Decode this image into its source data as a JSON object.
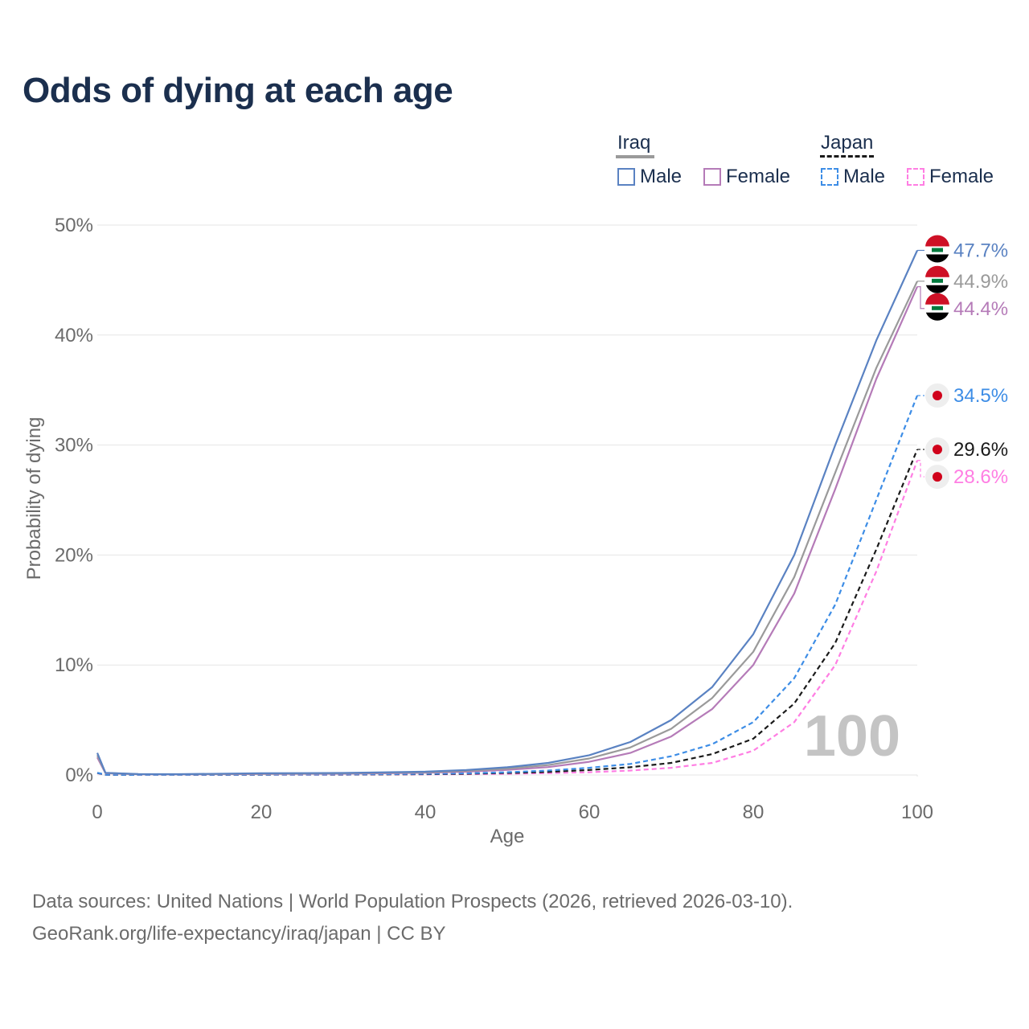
{
  "title": "Odds of dying at each age",
  "legend": {
    "groups": [
      {
        "name": "Iraq",
        "items": [
          "Male",
          "Female"
        ]
      },
      {
        "name": "Japan",
        "items": [
          "Male",
          "Female"
        ]
      }
    ]
  },
  "footer": {
    "line1": "Data sources: United Nations | World Population Prospects (2026, retrieved 2026-03-10).",
    "line2": "GeoRank.org/life-expectancy/iraq/japan | CC BY"
  },
  "colors": {
    "iraq_male": "#5a82c2",
    "iraq_female": "#b57bb8",
    "iraq_total": "#9a9a9a",
    "japan_male": "#3d8de6",
    "japan_female": "#ff7ee3",
    "japan_total": "#1a1a1a",
    "grid": "#e6e6e6",
    "axis_text": "#6b6b6b",
    "watermark": "#c4c4c4"
  },
  "chart_data": {
    "type": "line",
    "title": "Odds of dying at each age",
    "xlabel": "Age",
    "ylabel": "Probability of dying",
    "xlim": [
      0,
      100
    ],
    "ylim": [
      0,
      50
    ],
    "xticks": [
      0,
      20,
      40,
      60,
      80,
      100
    ],
    "yticks": [
      0,
      10,
      20,
      30,
      40,
      50
    ],
    "ytick_labels": [
      "0%",
      "10%",
      "20%",
      "30%",
      "40%",
      "50%"
    ],
    "watermark": "100",
    "x": [
      0,
      1,
      5,
      10,
      20,
      30,
      40,
      45,
      50,
      55,
      60,
      65,
      70,
      75,
      80,
      85,
      90,
      95,
      100
    ],
    "series": [
      {
        "name": "Iraq Male",
        "key": "iraq_male",
        "dashed": false,
        "values": [
          2.0,
          0.2,
          0.08,
          0.07,
          0.15,
          0.18,
          0.3,
          0.45,
          0.7,
          1.1,
          1.8,
          3.0,
          5.0,
          8.0,
          12.8,
          20.0,
          30.0,
          39.5,
          47.7
        ],
        "end_label": "47.7%",
        "flag": "iraq"
      },
      {
        "name": "Iraq Total",
        "key": "iraq_total",
        "dashed": false,
        "values": [
          1.8,
          0.18,
          0.07,
          0.06,
          0.12,
          0.15,
          0.25,
          0.38,
          0.58,
          0.9,
          1.5,
          2.5,
          4.2,
          7.0,
          11.2,
          18.0,
          27.5,
          37.0,
          44.9
        ],
        "end_label": "44.9%",
        "flag": "iraq"
      },
      {
        "name": "Iraq Female",
        "key": "iraq_female",
        "dashed": false,
        "values": [
          1.6,
          0.16,
          0.06,
          0.05,
          0.09,
          0.12,
          0.2,
          0.3,
          0.46,
          0.72,
          1.2,
          2.0,
          3.5,
          6.0,
          10.0,
          16.5,
          26.0,
          36.0,
          44.4
        ],
        "end_label": "44.4%",
        "flag": "iraq"
      },
      {
        "name": "Japan Male",
        "key": "japan_male",
        "dashed": true,
        "values": [
          0.2,
          0.03,
          0.01,
          0.01,
          0.04,
          0.05,
          0.1,
          0.15,
          0.25,
          0.4,
          0.65,
          1.0,
          1.7,
          2.8,
          4.8,
          8.8,
          15.5,
          25.0,
          34.5
        ],
        "end_label": "34.5%",
        "flag": "japan"
      },
      {
        "name": "Japan Total",
        "key": "japan_total",
        "dashed": true,
        "values": [
          0.18,
          0.02,
          0.01,
          0.01,
          0.03,
          0.04,
          0.07,
          0.11,
          0.18,
          0.28,
          0.45,
          0.7,
          1.1,
          1.9,
          3.3,
          6.5,
          12.0,
          20.5,
          29.6
        ],
        "end_label": "29.6%",
        "flag": "japan"
      },
      {
        "name": "Japan Female",
        "key": "japan_female",
        "dashed": true,
        "values": [
          0.16,
          0.02,
          0.01,
          0.01,
          0.02,
          0.03,
          0.05,
          0.07,
          0.11,
          0.17,
          0.25,
          0.4,
          0.65,
          1.1,
          2.2,
          4.8,
          10.0,
          18.5,
          28.6
        ],
        "end_label": "28.6%",
        "flag": "japan"
      }
    ]
  }
}
